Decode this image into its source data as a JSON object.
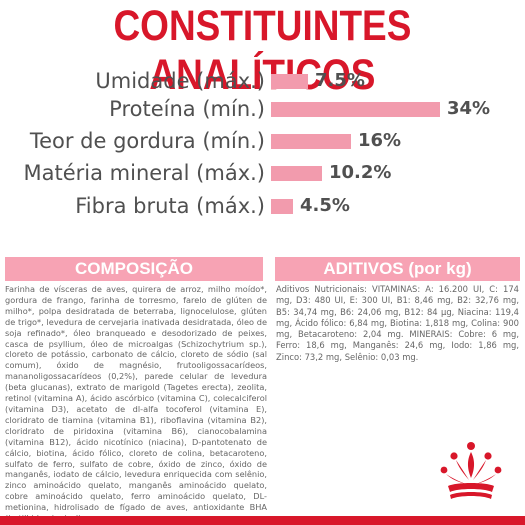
{
  "title": "CONSTITUINTES ANALÍTICOS",
  "metrics": [
    {
      "label": "Umidade (máx.)",
      "value": "7.5%",
      "percent": 7.5
    },
    {
      "label": "Proteína (mín.)",
      "value": "34%",
      "percent": 34
    },
    {
      "label": "Teor de gordura (mín.)",
      "value": "16%",
      "percent": 16
    },
    {
      "label": "Matéria mineral (máx.)",
      "value": "10.2%",
      "percent": 10.2
    },
    {
      "label": "Fibra bruta (máx.)",
      "value": "4.5%",
      "percent": 4.5
    }
  ],
  "composicao": {
    "heading": "COMPOSIÇÃO",
    "text": "Farinha de vísceras de aves, quirera de arroz, milho moído*, gordura de frango, farinha de torresmo, farelo de glúten de milho*, polpa desidratada de beterraba, lignocelulose, glúten de trigo*, levedura de cervejaria inativada desidratada, óleo de soja refinado*, óleo branqueado e desodorizado de peixes, casca de psyllium, óleo de microalgas (Schizochytrium sp.), cloreto de potássio, carbonato de cálcio, cloreto de sódio (sal comum), óxido de magnésio, frutooligossacarídeos, mananoligossacarídeos (0,2%), parede celular de levedura (beta glucanas), extrato de marigold (Tagetes erecta), zeolita, retinol (vitamina A), ácido ascórbico (vitamina C), colecalciferol (vitamina D3), acetato de dl-alfa tocoferol (vitamina E), cloridrato de tiamina (vitamina B1), riboflavina (vitamina B2), cloridrato de piridoxina (vitamina B6), cianocobalamina (vitamina B12), ácido nicotínico (niacina), D-pantotenato de cálcio, biotina, ácido fólico, cloreto de colina, betacaroteno, sulfato de ferro, sulfato de cobre, óxido de zinco, óxido de manganês, iodato de cálcio, levedura enriquecida com selênio, zinco aminoácido quelato, manganês aminoácido quelato, cobre aminoácido quelato, ferro aminoácido quelato, DL-metionina, hidrolisado de fígado de aves, antioxidante BHA (butilhidroxianisol)."
  },
  "aditivos": {
    "heading": "ADITIVOS (por kg)",
    "text": "Aditivos Nutricionais: VITAMINAS: A: 16.200 UI, C: 174 mg, D3: 480 UI, E: 300 UI, B1: 8,46 mg, B2: 32,76 mg, B5: 34,74 mg, B6: 24,06 mg, B12: 84 µg, Niacina: 119,4 mg, Ácido fólico: 6,84 mg, Biotina: 1,818 mg, Colina: 900 mg, Betacaroteno: 2,04 mg. MINERAIS: Cobre: 6 mg, Ferro: 18,6 mg, Manganês: 24,6 mg, Iodo: 1,86 mg, Zinco: 73,2 mg, Selênio: 0,03 mg."
  },
  "colors": {
    "brand_red": "#d8172a",
    "bar_pink": "#f29bad",
    "band_pink": "#f7a3b4"
  },
  "logo": {
    "icon": "royal-canin-crown-icon"
  }
}
